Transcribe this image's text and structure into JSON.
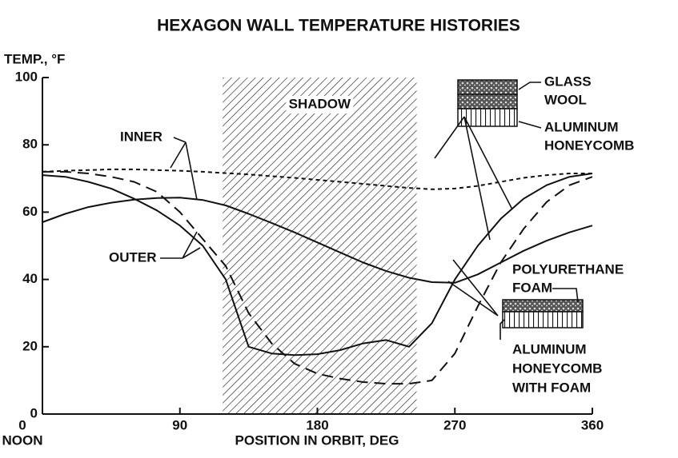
{
  "chart_data": {
    "type": "line",
    "title": "HEXAGON WALL TEMPERATURE HISTORIES",
    "y_label": "TEMP., °F",
    "x_label": "POSITION IN ORBIT, DEG",
    "x_origin_label": "NOON",
    "xlim": [
      0,
      360
    ],
    "xticks": [
      0,
      90,
      180,
      270,
      360
    ],
    "ylim": [
      0,
      100
    ],
    "yticks": [
      0,
      20,
      40,
      60,
      80,
      100
    ],
    "x": [
      0,
      15,
      30,
      45,
      60,
      75,
      90,
      105,
      120,
      135,
      150,
      165,
      180,
      195,
      210,
      225,
      240,
      255,
      270,
      285,
      300,
      315,
      330,
      345,
      360
    ],
    "series": [
      {
        "color": "#111111",
        "dash": "5,4",
        "values": [
          72,
          72.3,
          72.5,
          72.7,
          72.7,
          72.5,
          72.3,
          72,
          71.6,
          71.2,
          70.7,
          70.2,
          69.6,
          69,
          68.4,
          67.8,
          67.2,
          66.8,
          67,
          67.8,
          69,
          70.2,
          71,
          71.5,
          71.5
        ]
      },
      {
        "color": "#111111",
        "dash": "none",
        "values": [
          57,
          59.5,
          61.5,
          62.8,
          63.7,
          64.2,
          64.3,
          63.6,
          62,
          59.5,
          56.8,
          54,
          51,
          48,
          45,
          42.5,
          40.5,
          39.2,
          39,
          41.5,
          45,
          48.5,
          51.5,
          54,
          56
        ]
      },
      {
        "color": "#111111",
        "dash": "none",
        "values": [
          71,
          70.5,
          69,
          67,
          64,
          60.5,
          56,
          50,
          40,
          20,
          18,
          17.5,
          17.8,
          19,
          21,
          22,
          20,
          27,
          40,
          50,
          58,
          64,
          68,
          70.5,
          71.5
        ]
      },
      {
        "color": "#111111",
        "dash": "14,8",
        "values": [
          72,
          72,
          71.5,
          70.5,
          69,
          66,
          60,
          52,
          44,
          30,
          21,
          15,
          12,
          10.5,
          9.5,
          9,
          9,
          10,
          18,
          32,
          45,
          55,
          63,
          68,
          70.5
        ]
      }
    ],
    "shadow": {
      "label": "SHADOW",
      "x": [
        118,
        245
      ]
    },
    "annotations": {
      "inner": "INNER",
      "outer": "OUTER",
      "glass_wool": [
        "GLASS",
        "WOOL"
      ],
      "aluminum_honeycomb": [
        "ALUMINUM",
        "HONEYCOMB"
      ],
      "polyurethane_foam": [
        "POLYURETHANE",
        "FOAM"
      ],
      "honeycomb_with_foam": [
        "ALUMINUM",
        "HONEYCOMB",
        "WITH FOAM"
      ]
    }
  }
}
